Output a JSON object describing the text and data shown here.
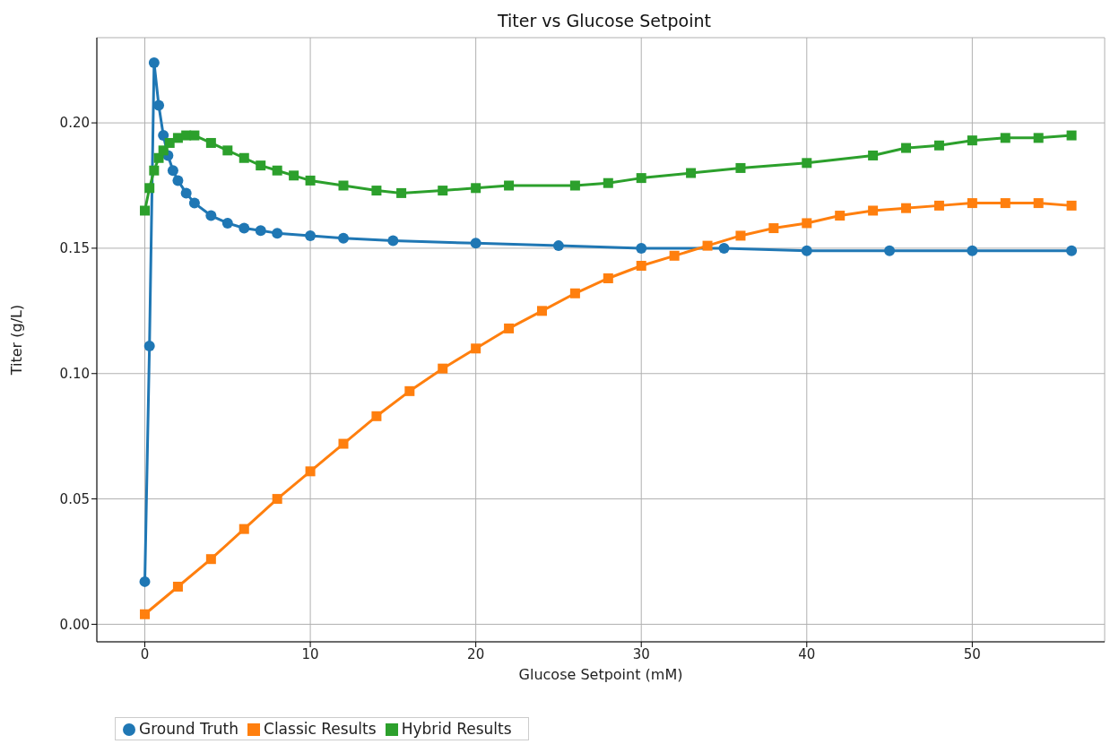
{
  "chart_data": {
    "type": "line",
    "title": "Titer vs Glucose Setpoint",
    "xlabel": "Glucose Setpoint (mM)",
    "ylabel": "Titer (g/L)",
    "xlim": [
      -2.9,
      58
    ],
    "xticks": [
      0,
      10,
      20,
      30,
      40,
      50
    ],
    "ylim": [
      -0.007,
      0.234
    ],
    "yticks": [
      {
        "value": 0,
        "label": "0.00"
      },
      {
        "value": 0.05,
        "label": "0.05"
      },
      {
        "value": 0.1,
        "label": "0.10"
      },
      {
        "value": 0.15,
        "label": "0.15"
      },
      {
        "value": 0.2,
        "label": "0.20"
      }
    ],
    "grid": true,
    "legend": "bottom",
    "line_style": "solid",
    "series": [
      {
        "name": "Ground Truth",
        "color": "#1f77b4",
        "marker": "circle",
        "x": [
          0,
          0.28,
          0.56,
          0.84,
          1.12,
          1.4,
          1.7,
          2,
          2.5,
          3,
          4,
          5,
          6,
          7,
          8,
          10,
          12,
          15,
          20,
          25,
          30,
          35,
          40,
          45,
          50,
          56
        ],
        "values": [
          0.017,
          0.111,
          0.224,
          0.207,
          0.195,
          0.187,
          0.181,
          0.177,
          0.172,
          0.168,
          0.163,
          0.16,
          0.158,
          0.157,
          0.156,
          0.155,
          0.154,
          0.153,
          0.152,
          0.151,
          0.15,
          0.15,
          0.149,
          0.149,
          0.149,
          0.149
        ]
      },
      {
        "name": "Classic Results",
        "color": "#ff7f0e",
        "marker": "square",
        "x": [
          0,
          2,
          4,
          6,
          8,
          10,
          12,
          14,
          16,
          18,
          20,
          22,
          24,
          26,
          28,
          30,
          32,
          34,
          36,
          38,
          40,
          42,
          44,
          46,
          48,
          50,
          52,
          54,
          56
        ],
        "values": [
          0.004,
          0.015,
          0.026,
          0.038,
          0.05,
          0.061,
          0.072,
          0.083,
          0.093,
          0.102,
          0.11,
          0.118,
          0.125,
          0.132,
          0.138,
          0.143,
          0.147,
          0.151,
          0.155,
          0.158,
          0.16,
          0.163,
          0.165,
          0.166,
          0.167,
          0.168,
          0.168,
          0.168,
          0.167
        ]
      },
      {
        "name": "Hybrid Results",
        "color": "#2ca02c",
        "marker": "square",
        "x": [
          0,
          0.28,
          0.56,
          0.84,
          1.12,
          1.5,
          2,
          2.5,
          3,
          4,
          5,
          6,
          7,
          8,
          9,
          10,
          12,
          14,
          15.5,
          18,
          20,
          22,
          26,
          28,
          30,
          33,
          36,
          40,
          44,
          46,
          48,
          50,
          52,
          54,
          56
        ],
        "values": [
          0.165,
          0.174,
          0.181,
          0.186,
          0.189,
          0.192,
          0.194,
          0.195,
          0.195,
          0.192,
          0.189,
          0.186,
          0.183,
          0.181,
          0.179,
          0.177,
          0.175,
          0.173,
          0.172,
          0.173,
          0.174,
          0.175,
          0.175,
          0.176,
          0.178,
          0.18,
          0.182,
          0.184,
          0.187,
          0.19,
          0.191,
          0.193,
          0.194,
          0.194,
          0.195
        ]
      }
    ]
  }
}
